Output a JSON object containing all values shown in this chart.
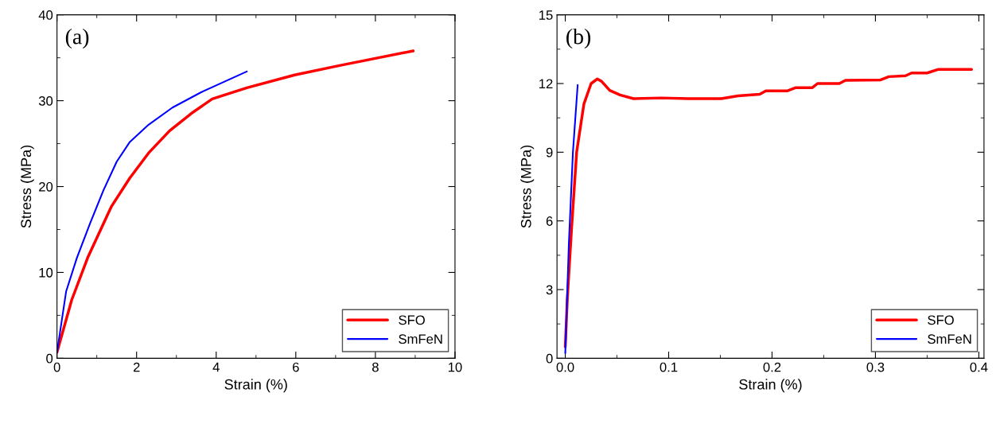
{
  "chart_data": [
    {
      "type": "line",
      "xlabel": "Strain (%)",
      "ylabel": "Stress (MPa)",
      "annotations": [
        "(a)"
      ],
      "xlim": [
        0,
        10
      ],
      "ylim": [
        0,
        40
      ],
      "xticks": [
        0,
        2,
        4,
        6,
        8,
        10
      ],
      "yticks": [
        0,
        10,
        20,
        30,
        40
      ],
      "legend": "bottom right",
      "grid": false,
      "line_style": "solid",
      "series": [
        {
          "name": "SFO",
          "color": "#ff0000",
          "x": [
            0,
            0.37,
            0.77,
            1.37,
            1.83,
            2.3,
            2.83,
            3.37,
            3.9,
            4.77,
            5.97,
            7.1,
            8.95
          ],
          "values": [
            0.7,
            6.8,
            11.7,
            17.7,
            21,
            23.9,
            26.5,
            28.5,
            30.2,
            31.5,
            33,
            34.1,
            35.8
          ]
        },
        {
          "name": "SmFeN",
          "color": "#0000ff",
          "x": [
            0,
            0.23,
            0.5,
            0.83,
            1.17,
            1.5,
            1.83,
            2.3,
            2.9,
            3.63,
            4.77
          ],
          "values": [
            0.7,
            7.8,
            11.7,
            15.7,
            19.6,
            22.9,
            25.2,
            27.2,
            29.2,
            31,
            33.4
          ]
        }
      ]
    },
    {
      "type": "line",
      "xlabel": "Strain (%)",
      "ylabel": "Stress (MPa)",
      "annotations": [
        "(b)"
      ],
      "xlim": [
        -0.008,
        0.405
      ],
      "ylim": [
        0,
        15
      ],
      "xticks": [
        {
          "value": 0,
          "label": "0.0"
        },
        0.1,
        0.2,
        0.3,
        0.4
      ],
      "yticks": [
        0,
        3,
        6,
        9,
        12,
        15
      ],
      "legend": "bottom right",
      "grid": false,
      "line_style": "solid",
      "series": [
        {
          "name": "SFO",
          "color": "#ff0000",
          "x": [
            0,
            0.002,
            0.006,
            0.011,
            0.015,
            0.018,
            0.025,
            0.031,
            0.035,
            0.043,
            0.053,
            0.066,
            0.093,
            0.119,
            0.151,
            0.167,
            0.188,
            0.194,
            0.215,
            0.223,
            0.239,
            0.244,
            0.265,
            0.271,
            0.305,
            0.313,
            0.329,
            0.335,
            0.35,
            0.361,
            0.393
          ],
          "values": [
            0.5,
            2.6,
            5.6,
            9.0,
            10.2,
            11.1,
            12.0,
            12.2,
            12.1,
            11.7,
            11.5,
            11.34,
            11.37,
            11.34,
            11.34,
            11.46,
            11.53,
            11.68,
            11.68,
            11.82,
            11.82,
            12.0,
            12.0,
            12.14,
            12.16,
            12.3,
            12.34,
            12.46,
            12.46,
            12.62,
            12.62
          ]
        },
        {
          "name": "SmFeN",
          "color": "#0000ff",
          "x": [
            0,
            0.0035,
            0.0074,
            0.012
          ],
          "values": [
            0.22,
            5.04,
            9.0,
            11.94
          ]
        }
      ]
    }
  ]
}
